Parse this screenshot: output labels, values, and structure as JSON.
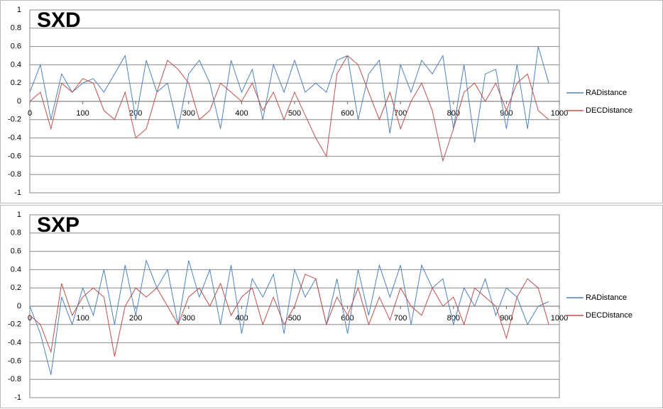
{
  "chart_data": [
    {
      "type": "line",
      "title": "SXD",
      "x": [
        0,
        20,
        40,
        60,
        80,
        100,
        120,
        140,
        160,
        180,
        200,
        220,
        240,
        260,
        280,
        300,
        320,
        340,
        360,
        380,
        400,
        420,
        440,
        460,
        480,
        500,
        520,
        540,
        560,
        580,
        600,
        620,
        640,
        660,
        680,
        700,
        720,
        740,
        760,
        780,
        800,
        820,
        840,
        860,
        880,
        900,
        920,
        940,
        960,
        980
      ],
      "series": [
        {
          "name": "RADistance",
          "color": "#4f81bd",
          "values": [
            0.1,
            0.4,
            -0.2,
            0.3,
            0.1,
            0.2,
            0.25,
            0.1,
            0.3,
            0.5,
            -0.2,
            0.45,
            0.1,
            0.2,
            -0.3,
            0.3,
            0.45,
            0.2,
            -0.3,
            0.45,
            0.1,
            0.35,
            -0.2,
            0.4,
            0.1,
            0.45,
            0.1,
            0.2,
            0.1,
            0.45,
            0.5,
            -0.2,
            0.3,
            0.45,
            -0.35,
            0.4,
            0.1,
            0.45,
            0.3,
            0.5,
            -0.3,
            0.4,
            -0.45,
            0.3,
            0.35,
            -0.3,
            0.4,
            -0.3,
            0.6,
            0.2
          ]
        },
        {
          "name": "DECDistance",
          "color": "#c0504d",
          "values": [
            0.0,
            0.1,
            -0.3,
            0.2,
            0.1,
            0.25,
            0.2,
            -0.1,
            -0.2,
            0.1,
            -0.4,
            -0.3,
            0.1,
            0.45,
            0.35,
            0.2,
            -0.2,
            -0.1,
            0.2,
            0.1,
            0.0,
            0.2,
            -0.1,
            0.1,
            -0.2,
            0.1,
            -0.15,
            -0.4,
            -0.6,
            0.3,
            0.5,
            0.4,
            0.1,
            -0.2,
            0.1,
            -0.3,
            0.0,
            0.2,
            -0.1,
            -0.65,
            -0.3,
            0.1,
            0.2,
            0.0,
            0.2,
            -0.1,
            0.2,
            0.3,
            -0.1,
            -0.2
          ]
        }
      ],
      "xlim": [
        0,
        1000
      ],
      "xticks": [
        0,
        100,
        200,
        300,
        400,
        500,
        600,
        700,
        800,
        900,
        1000
      ],
      "ylim": [
        -1,
        1
      ],
      "yticks": [
        1,
        0.8,
        0.6,
        0.4,
        0.2,
        0,
        -0.2,
        -0.4,
        -0.6,
        -0.8,
        -1
      ],
      "grid": true,
      "legend": "right"
    },
    {
      "type": "line",
      "title": "SXP",
      "x": [
        0,
        20,
        40,
        60,
        80,
        100,
        120,
        140,
        160,
        180,
        200,
        220,
        240,
        260,
        280,
        300,
        320,
        340,
        360,
        380,
        400,
        420,
        440,
        460,
        480,
        500,
        520,
        540,
        560,
        580,
        600,
        620,
        640,
        660,
        680,
        700,
        720,
        740,
        760,
        780,
        800,
        820,
        840,
        860,
        880,
        900,
        920,
        940,
        960,
        980
      ],
      "series": [
        {
          "name": "RADistance",
          "color": "#4f81bd",
          "values": [
            0.0,
            -0.3,
            -0.75,
            0.1,
            -0.2,
            0.2,
            -0.1,
            0.4,
            -0.2,
            0.45,
            -0.1,
            0.5,
            0.2,
            0.4,
            -0.2,
            0.5,
            0.1,
            0.4,
            -0.2,
            0.45,
            -0.3,
            0.3,
            0.1,
            0.35,
            -0.3,
            0.4,
            0.1,
            0.3,
            -0.2,
            0.3,
            -0.3,
            0.4,
            -0.1,
            0.45,
            0.1,
            0.45,
            -0.2,
            0.45,
            0.2,
            0.3,
            -0.2,
            0.2,
            0.0,
            0.3,
            -0.1,
            0.2,
            0.1,
            -0.2,
            0.0,
            0.05
          ]
        },
        {
          "name": "DECDistance",
          "color": "#c0504d",
          "values": [
            -0.1,
            -0.2,
            -0.5,
            0.25,
            -0.1,
            0.1,
            0.2,
            0.1,
            -0.55,
            0.0,
            0.2,
            0.1,
            0.2,
            0.0,
            -0.2,
            0.1,
            0.2,
            0.0,
            0.25,
            -0.1,
            0.1,
            0.2,
            -0.2,
            0.1,
            -0.2,
            0.0,
            0.35,
            0.3,
            -0.2,
            0.1,
            -0.1,
            0.2,
            -0.2,
            0.1,
            -0.15,
            0.2,
            0.0,
            -0.1,
            0.2,
            0.0,
            0.1,
            -0.2,
            0.2,
            0.1,
            0.0,
            -0.35,
            0.1,
            0.3,
            0.2,
            -0.2
          ]
        }
      ],
      "xlim": [
        0,
        1000
      ],
      "xticks": [
        0,
        100,
        200,
        300,
        400,
        500,
        600,
        700,
        800,
        900,
        1000
      ],
      "ylim": [
        -1,
        1
      ],
      "yticks": [
        1,
        0.8,
        0.6,
        0.4,
        0.2,
        0,
        -0.2,
        -0.4,
        -0.6,
        -0.8,
        -1
      ],
      "grid": true,
      "legend": "right"
    }
  ]
}
